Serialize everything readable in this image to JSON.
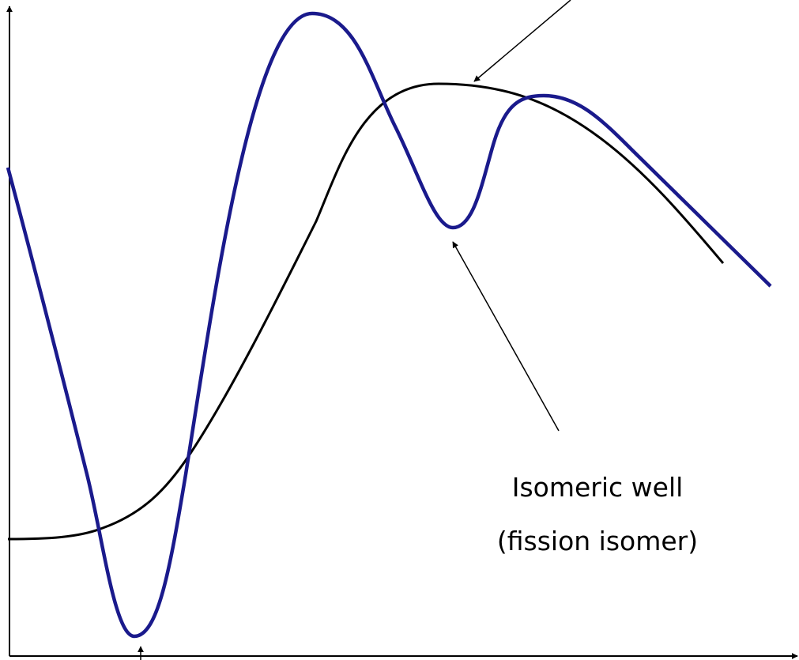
{
  "annotation": {
    "lines": [
      "Isomeric well",
      "(fission isomer)"
    ]
  }
}
